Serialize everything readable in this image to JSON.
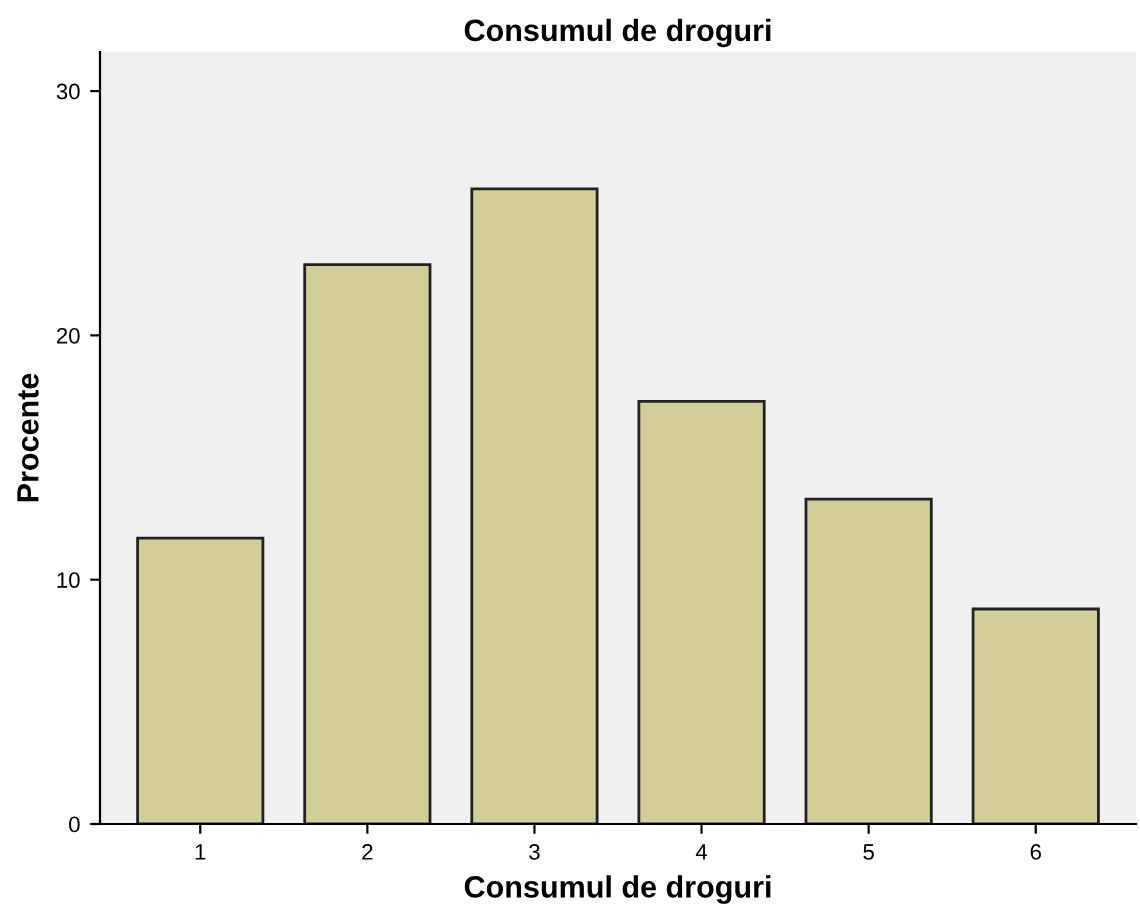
{
  "chart_data": {
    "type": "bar",
    "title": "Consumul de droguri",
    "xlabel": "Consumul de droguri",
    "ylabel": "Procente",
    "categories": [
      "1",
      "2",
      "3",
      "4",
      "5",
      "6"
    ],
    "values": [
      11.7,
      22.9,
      26.0,
      17.3,
      13.3,
      8.8
    ],
    "color": "#d3ce98",
    "ylim": [
      0,
      31.6
    ],
    "yticks": [
      0,
      10,
      20,
      30
    ],
    "grid": false
  }
}
